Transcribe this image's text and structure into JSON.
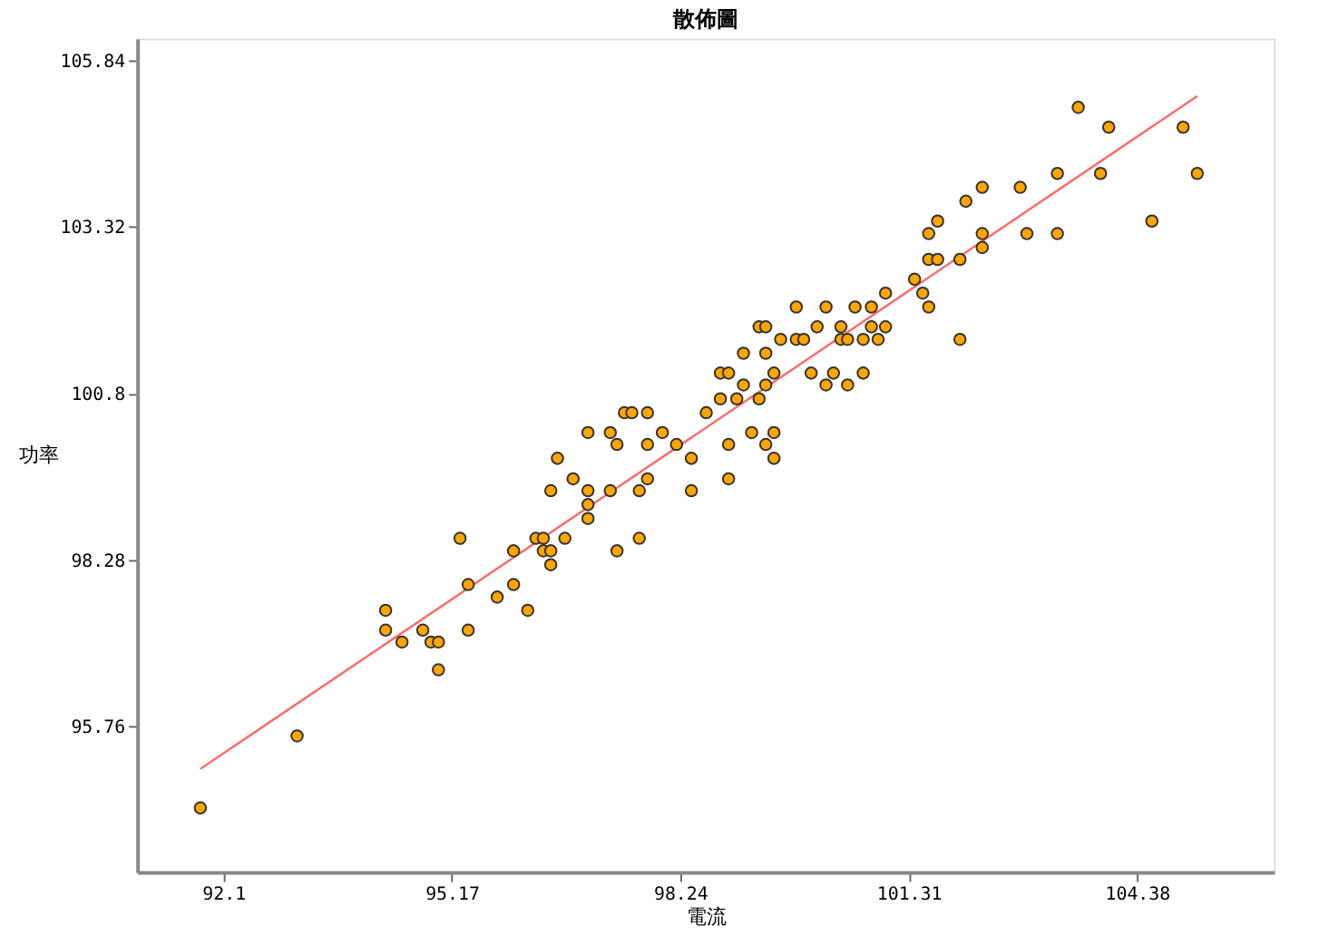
{
  "chart_data": {
    "type": "scatter",
    "title": "散佈圖",
    "xlabel": "電流",
    "ylabel": "功率",
    "xlim": [
      90.94,
      106.22
    ],
    "ylim": [
      93.56,
      106.17
    ],
    "xticks": [
      92.1,
      95.17,
      98.24,
      101.31,
      104.38
    ],
    "yticks": [
      95.76,
      98.28,
      100.8,
      103.32,
      105.84
    ],
    "grid": false,
    "legend": false,
    "marker": "circle",
    "series": [
      {
        "color": "#ffa500",
        "x": [
          91.79,
          93.09,
          94.28,
          94.28,
          94.5,
          94.78,
          94.89,
          94.99,
          94.99,
          95.28,
          95.39,
          95.39,
          95.78,
          96.0,
          96.0,
          96.19,
          96.3,
          96.4,
          96.4,
          96.5,
          96.5,
          96.69,
          96.5,
          96.59,
          96.8,
          97.0,
          97.0,
          97.0,
          97.0,
          97.3,
          97.39,
          97.3,
          97.39,
          97.69,
          97.69,
          97.8,
          97.8,
          98.0,
          98.19,
          98.39,
          98.39,
          98.78,
          98.78,
          98.59,
          97.49,
          97.59,
          97.8,
          103.59,
          104.0,
          105.0,
          105.19,
          103.89,
          103.31,
          102.81,
          102.3,
          102.08,
          101.7,
          101.58,
          102.3,
          102.9,
          103.31,
          104.58,
          101.58,
          101.7,
          102.0,
          102.3,
          101.39,
          101.5,
          101.58,
          102.0,
          101.0,
          99.8,
          100.2,
          100.59,
          100.81,
          99.3,
          99.39,
          100.08,
          100.4,
          100.81,
          101.0,
          99.59,
          99.8,
          99.9,
          100.4,
          100.49,
          100.7,
          100.9,
          99.09,
          99.39,
          98.89,
          99.5,
          100.0,
          100.3,
          100.7,
          99.09,
          99.39,
          100.2,
          100.49,
          99.0,
          99.3,
          99.2,
          99.5,
          98.89,
          99.39,
          99.5,
          98.89
        ],
        "values": [
          94.53,
          95.62,
          97.52,
          97.22,
          97.04,
          97.22,
          97.04,
          97.04,
          96.62,
          98.61,
          97.91,
          97.22,
          97.72,
          98.42,
          97.91,
          97.52,
          98.61,
          98.61,
          98.42,
          98.42,
          98.21,
          98.61,
          99.33,
          99.82,
          99.51,
          99.33,
          99.12,
          98.91,
          100.21,
          100.21,
          100.03,
          99.33,
          98.42,
          99.33,
          98.61,
          99.51,
          100.03,
          100.21,
          100.03,
          99.82,
          99.33,
          101.11,
          100.72,
          100.51,
          100.51,
          100.51,
          100.51,
          105.13,
          104.83,
          104.83,
          104.13,
          104.13,
          104.13,
          103.92,
          103.92,
          103.71,
          103.41,
          103.22,
          103.22,
          103.22,
          103.22,
          103.41,
          102.83,
          102.83,
          102.83,
          103.01,
          102.53,
          102.32,
          102.11,
          101.62,
          102.32,
          102.11,
          102.11,
          102.11,
          102.11,
          101.81,
          101.81,
          101.81,
          101.81,
          101.81,
          101.81,
          101.62,
          101.62,
          101.62,
          101.62,
          101.62,
          101.62,
          101.62,
          101.41,
          101.41,
          101.11,
          101.11,
          101.11,
          101.11,
          101.11,
          100.93,
          100.93,
          100.93,
          100.93,
          100.72,
          100.72,
          100.21,
          100.21,
          100.03,
          100.03,
          99.82,
          99.51
        ]
      },
      {
        "type": "line",
        "color": "#ff6666",
        "x": [
          91.79,
          105.19
        ],
        "values": [
          95.12,
          105.3
        ],
        "line_style": "solid",
        "marker": "none"
      }
    ]
  }
}
